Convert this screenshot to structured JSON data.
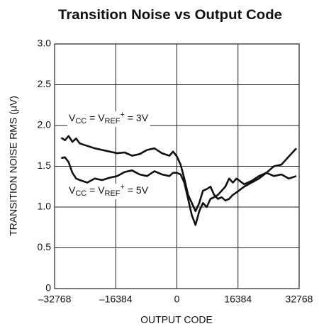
{
  "chart_data": {
    "type": "line",
    "title": "Transition Noise vs Output Code",
    "x_label": "OUTPUT CODE",
    "y_label": "TRANSITION NOISE RMS (μV)",
    "x": [
      -31000,
      -30000,
      -29000,
      -28000,
      -27000,
      -26000,
      -24000,
      -22000,
      -20000,
      -18000,
      -16000,
      -14000,
      -12000,
      -10000,
      -8000,
      -6000,
      -4000,
      -2000,
      -1000,
      0,
      1000,
      2000,
      3000,
      4000,
      5000,
      6000,
      7000,
      8000,
      9000,
      10000,
      11000,
      12000,
      13000,
      14000,
      15000,
      16000,
      18000,
      20000,
      22000,
      24000,
      26000,
      28000,
      30000,
      32000
    ],
    "series": [
      {
        "name": "3V",
        "color": "#111111",
        "values": [
          1.85,
          1.82,
          1.87,
          1.8,
          1.84,
          1.78,
          1.75,
          1.72,
          1.7,
          1.68,
          1.66,
          1.67,
          1.63,
          1.65,
          1.7,
          1.72,
          1.66,
          1.63,
          1.68,
          1.62,
          1.52,
          1.35,
          1.15,
          1.05,
          0.95,
          1.05,
          1.2,
          1.22,
          1.25,
          1.15,
          1.1,
          1.12,
          1.08,
          1.1,
          1.15,
          1.18,
          1.25,
          1.3,
          1.35,
          1.42,
          1.5,
          1.52,
          1.62,
          1.72
        ]
      },
      {
        "name": "5V",
        "color": "#111111",
        "values": [
          1.6,
          1.61,
          1.55,
          1.42,
          1.35,
          1.33,
          1.3,
          1.35,
          1.33,
          1.36,
          1.38,
          1.43,
          1.45,
          1.4,
          1.38,
          1.44,
          1.4,
          1.38,
          1.42,
          1.42,
          1.4,
          1.3,
          1.1,
          0.9,
          0.78,
          0.95,
          1.05,
          1.0,
          1.1,
          1.12,
          1.15,
          1.2,
          1.25,
          1.35,
          1.3,
          1.35,
          1.28,
          1.32,
          1.38,
          1.42,
          1.38,
          1.4,
          1.35,
          1.38
        ]
      }
    ],
    "annotations": [
      {
        "parts": [
          "V",
          "CC",
          " = V",
          "REF",
          "+",
          " = 3V"
        ]
      },
      {
        "parts": [
          "V",
          "CC",
          " = V",
          "REF",
          "+",
          " = 5V"
        ]
      }
    ],
    "xlim": [
      -32768,
      32768
    ],
    "xticks": [
      {
        "value": -32768,
        "label": "–32768"
      },
      {
        "value": -16384,
        "label": "–16384"
      },
      0,
      16384,
      32768
    ],
    "ylim": [
      0,
      3
    ],
    "yticks": [
      0,
      {
        "value": 0.5,
        "label": "0.5"
      },
      {
        "value": 1,
        "label": "1.0"
      },
      {
        "value": 1.5,
        "label": "1.5"
      },
      {
        "value": 2,
        "label": "2.0"
      },
      {
        "value": 2.5,
        "label": "2.5"
      },
      {
        "value": 3,
        "label": "3.0"
      }
    ],
    "grid": true
  }
}
